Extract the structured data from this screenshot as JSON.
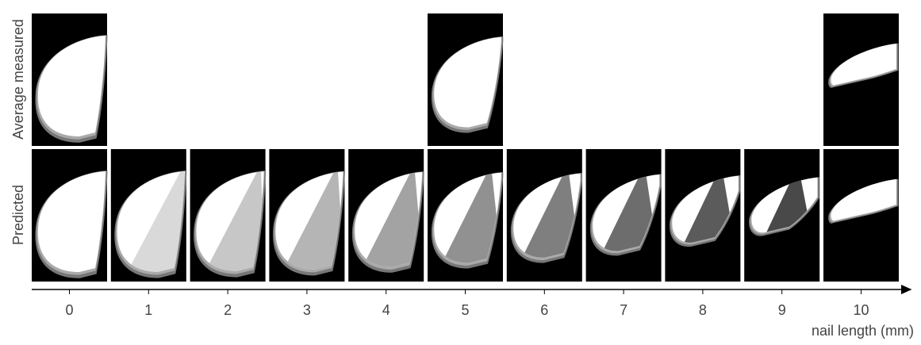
{
  "row_labels": [
    "Average measured",
    "Predicted"
  ],
  "x_axis": {
    "label": "nail length (mm)",
    "ticks": [
      0,
      1,
      2,
      3,
      4,
      5,
      6,
      7,
      8,
      9,
      10
    ]
  }
}
